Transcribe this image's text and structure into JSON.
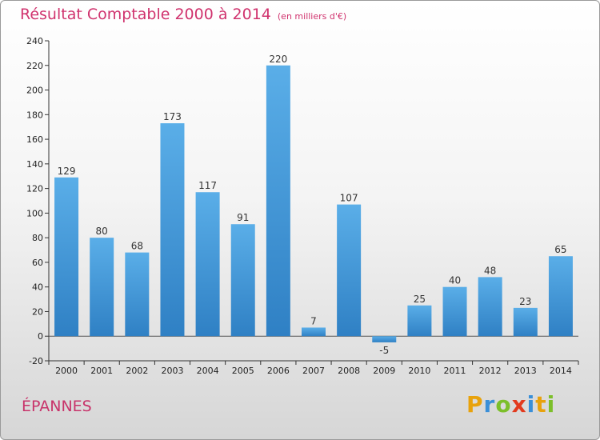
{
  "page": {
    "title": "Résultat Comptable 2000 à 2014",
    "subtitle": "(en milliers d'€)",
    "town": "ÉPANNES",
    "logo": {
      "letters": [
        "P",
        "r",
        "o",
        "x",
        "i",
        "t",
        "i"
      ],
      "colors": [
        "#e8a20c",
        "#3a8fd8",
        "#7cbf2a",
        "#e23a1e",
        "#3a8fd8",
        "#e8a20c",
        "#7cbf2a"
      ]
    }
  },
  "chart_data": {
    "type": "bar",
    "title": "Résultat Comptable 2000 à 2014",
    "subtitle": "(en milliers d'€)",
    "categories": [
      "2000",
      "2001",
      "2002",
      "2003",
      "2004",
      "2005",
      "2006",
      "2007",
      "2008",
      "2009",
      "2010",
      "2011",
      "2012",
      "2013",
      "2014"
    ],
    "values": [
      129,
      80,
      68,
      173,
      117,
      91,
      220,
      7,
      107,
      -5,
      25,
      40,
      48,
      23,
      65
    ],
    "ylim": [
      -20,
      240
    ],
    "yticks": [
      -20,
      0,
      20,
      40,
      60,
      80,
      100,
      120,
      140,
      160,
      180,
      200,
      220,
      240
    ],
    "grid": false,
    "colors": {
      "bar_top": "#5aaee8",
      "bar_bottom": "#2f80c4",
      "title": "#d0336e"
    }
  }
}
